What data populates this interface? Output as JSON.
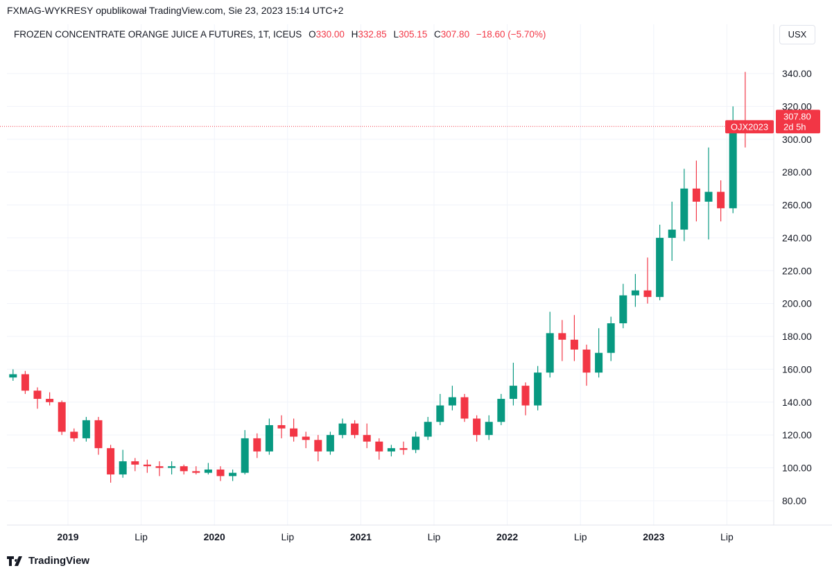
{
  "header": {
    "published": "FXMAG-WYKRESY opublikował TradingView.com, Sie 23, 2023 15:14 UTC+2",
    "symbol": "FROZEN CONCENTRATE ORANGE JUICE A FUTURES, 1T, ICEUS",
    "o_label": "O",
    "o": "330.00",
    "h_label": "H",
    "h": "332.85",
    "l_label": "L",
    "l": "305.15",
    "c_label": "C",
    "c": "307.80",
    "change": "−18.60 (−5.70%)",
    "currency_button": "USX"
  },
  "price_tag": {
    "ticker": "OJX2023",
    "price": "307.80",
    "countdown": "2d 5h"
  },
  "footer": {
    "brand": "TradingView"
  },
  "colors": {
    "up": "#089981",
    "down": "#f23645",
    "grid": "#f0f3fa"
  },
  "chart_data": {
    "type": "candlestick",
    "title": "FROZEN CONCENTRATE ORANGE JUICE A FUTURES, 1T, ICEUS",
    "ylim": [
      70,
      350
    ],
    "y_ticks": [
      "80.00",
      "100.00",
      "120.00",
      "140.00",
      "160.00",
      "180.00",
      "200.00",
      "220.00",
      "240.00",
      "260.00",
      "280.00",
      "300.00",
      "320.00",
      "340.00"
    ],
    "x_ticks": [
      {
        "label": "2019",
        "date": "2019-01",
        "bold": true
      },
      {
        "label": "Lip",
        "date": "2019-07",
        "bold": false
      },
      {
        "label": "2020",
        "date": "2020-01",
        "bold": true
      },
      {
        "label": "Lip",
        "date": "2020-07",
        "bold": false
      },
      {
        "label": "2021",
        "date": "2021-01",
        "bold": true
      },
      {
        "label": "Lip",
        "date": "2021-07",
        "bold": false
      },
      {
        "label": "2022",
        "date": "2022-01",
        "bold": true
      },
      {
        "label": "Lip",
        "date": "2022-07",
        "bold": false
      },
      {
        "label": "2023",
        "date": "2023-01",
        "bold": true
      },
      {
        "label": "Lip",
        "date": "2023-07",
        "bold": false
      }
    ],
    "last_price": 307.8,
    "candles": [
      {
        "d": "2018-08",
        "o": 155,
        "h": 160,
        "l": 153,
        "c": 157
      },
      {
        "d": "2018-09",
        "o": 157,
        "h": 159,
        "l": 145,
        "c": 147
      },
      {
        "d": "2018-10",
        "o": 147,
        "h": 149,
        "l": 136,
        "c": 142
      },
      {
        "d": "2018-11",
        "o": 142,
        "h": 146,
        "l": 138,
        "c": 140
      },
      {
        "d": "2018-12",
        "o": 140,
        "h": 141,
        "l": 120,
        "c": 122
      },
      {
        "d": "2019-01",
        "o": 122,
        "h": 124,
        "l": 116,
        "c": 118
      },
      {
        "d": "2019-02",
        "o": 118,
        "h": 131,
        "l": 116,
        "c": 129
      },
      {
        "d": "2019-03",
        "o": 129,
        "h": 131,
        "l": 108,
        "c": 112
      },
      {
        "d": "2019-04",
        "o": 112,
        "h": 114,
        "l": 91,
        "c": 96
      },
      {
        "d": "2019-05",
        "o": 96,
        "h": 111,
        "l": 94,
        "c": 104
      },
      {
        "d": "2019-06",
        "o": 104,
        "h": 106,
        "l": 98,
        "c": 102
      },
      {
        "d": "2019-07",
        "o": 102,
        "h": 105,
        "l": 97,
        "c": 101
      },
      {
        "d": "2019-08",
        "o": 101,
        "h": 104,
        "l": 95,
        "c": 100
      },
      {
        "d": "2019-09",
        "o": 100,
        "h": 104,
        "l": 96,
        "c": 101
      },
      {
        "d": "2019-10",
        "o": 101,
        "h": 102,
        "l": 96,
        "c": 98
      },
      {
        "d": "2019-11",
        "o": 98,
        "h": 101,
        "l": 96,
        "c": 97
      },
      {
        "d": "2019-12",
        "o": 97,
        "h": 103,
        "l": 96,
        "c": 99
      },
      {
        "d": "2020-01",
        "o": 99,
        "h": 101,
        "l": 92,
        "c": 95
      },
      {
        "d": "2020-02",
        "o": 95,
        "h": 99,
        "l": 92,
        "c": 97
      },
      {
        "d": "2020-03",
        "o": 97,
        "h": 123,
        "l": 96,
        "c": 118
      },
      {
        "d": "2020-04",
        "o": 118,
        "h": 121,
        "l": 106,
        "c": 110
      },
      {
        "d": "2020-05",
        "o": 110,
        "h": 130,
        "l": 108,
        "c": 126
      },
      {
        "d": "2020-06",
        "o": 126,
        "h": 132,
        "l": 118,
        "c": 124
      },
      {
        "d": "2020-07",
        "o": 124,
        "h": 130,
        "l": 116,
        "c": 119
      },
      {
        "d": "2020-08",
        "o": 119,
        "h": 122,
        "l": 112,
        "c": 117
      },
      {
        "d": "2020-09",
        "o": 117,
        "h": 120,
        "l": 104,
        "c": 110
      },
      {
        "d": "2020-10",
        "o": 110,
        "h": 122,
        "l": 108,
        "c": 120
      },
      {
        "d": "2020-11",
        "o": 120,
        "h": 130,
        "l": 118,
        "c": 127
      },
      {
        "d": "2020-12",
        "o": 127,
        "h": 129,
        "l": 118,
        "c": 120
      },
      {
        "d": "2021-01",
        "o": 120,
        "h": 127,
        "l": 112,
        "c": 116
      },
      {
        "d": "2021-02",
        "o": 116,
        "h": 118,
        "l": 105,
        "c": 110
      },
      {
        "d": "2021-03",
        "o": 110,
        "h": 114,
        "l": 107,
        "c": 112
      },
      {
        "d": "2021-04",
        "o": 112,
        "h": 116,
        "l": 108,
        "c": 111
      },
      {
        "d": "2021-05",
        "o": 111,
        "h": 122,
        "l": 109,
        "c": 119
      },
      {
        "d": "2021-06",
        "o": 119,
        "h": 131,
        "l": 117,
        "c": 128
      },
      {
        "d": "2021-07",
        "o": 128,
        "h": 145,
        "l": 126,
        "c": 138
      },
      {
        "d": "2021-08",
        "o": 138,
        "h": 150,
        "l": 135,
        "c": 143
      },
      {
        "d": "2021-09",
        "o": 143,
        "h": 145,
        "l": 128,
        "c": 130
      },
      {
        "d": "2021-10",
        "o": 130,
        "h": 132,
        "l": 116,
        "c": 120
      },
      {
        "d": "2021-11",
        "o": 120,
        "h": 132,
        "l": 117,
        "c": 128
      },
      {
        "d": "2021-12",
        "o": 128,
        "h": 145,
        "l": 126,
        "c": 142
      },
      {
        "d": "2022-01",
        "o": 142,
        "h": 164,
        "l": 138,
        "c": 150
      },
      {
        "d": "2022-02",
        "o": 150,
        "h": 152,
        "l": 132,
        "c": 138
      },
      {
        "d": "2022-03",
        "o": 138,
        "h": 162,
        "l": 135,
        "c": 158
      },
      {
        "d": "2022-04",
        "o": 158,
        "h": 195,
        "l": 155,
        "c": 182
      },
      {
        "d": "2022-05",
        "o": 182,
        "h": 190,
        "l": 165,
        "c": 178
      },
      {
        "d": "2022-06",
        "o": 178,
        "h": 193,
        "l": 165,
        "c": 172
      },
      {
        "d": "2022-07",
        "o": 172,
        "h": 175,
        "l": 150,
        "c": 158
      },
      {
        "d": "2022-08",
        "o": 158,
        "h": 185,
        "l": 155,
        "c": 170
      },
      {
        "d": "2022-09",
        "o": 170,
        "h": 192,
        "l": 165,
        "c": 188
      },
      {
        "d": "2022-10",
        "o": 188,
        "h": 212,
        "l": 185,
        "c": 205
      },
      {
        "d": "2022-11",
        "o": 205,
        "h": 218,
        "l": 198,
        "c": 208
      },
      {
        "d": "2022-12",
        "o": 208,
        "h": 228,
        "l": 200,
        "c": 204
      },
      {
        "d": "2023-01",
        "o": 204,
        "h": 248,
        "l": 202,
        "c": 240
      },
      {
        "d": "2023-02",
        "o": 240,
        "h": 262,
        "l": 226,
        "c": 245
      },
      {
        "d": "2023-03",
        "o": 245,
        "h": 282,
        "l": 238,
        "c": 270
      },
      {
        "d": "2023-04",
        "o": 270,
        "h": 287,
        "l": 250,
        "c": 262
      },
      {
        "d": "2023-05",
        "o": 262,
        "h": 295,
        "l": 239,
        "c": 268
      },
      {
        "d": "2023-06",
        "o": 268,
        "h": 275,
        "l": 250,
        "c": 258
      },
      {
        "d": "2023-07",
        "o": 258,
        "h": 320,
        "l": 255,
        "c": 310
      },
      {
        "d": "2023-08",
        "o": 310,
        "h": 341,
        "l": 295,
        "c": 307.8
      }
    ]
  }
}
